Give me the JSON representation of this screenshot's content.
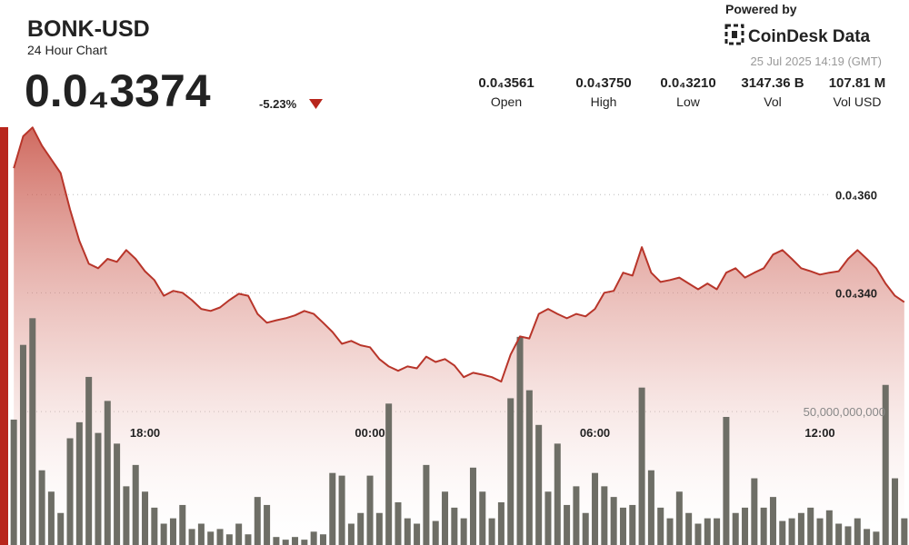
{
  "header": {
    "title": "BONK-USD",
    "subtitle": "24 Hour Chart",
    "price": "0.0₄3374",
    "change": "-5.23%",
    "powered_by": "Powered by",
    "brand": "CoinDesk Data",
    "timestamp": "25 Jul 2025 14:19 (GMT)",
    "stats": [
      {
        "value": "0.0₄3561",
        "label": "Open"
      },
      {
        "value": "0.0₄3750",
        "label": "High"
      },
      {
        "value": "0.0₄3210",
        "label": "Low"
      },
      {
        "value": "3147.36 B",
        "label": "Vol"
      },
      {
        "value": "107.81 M",
        "label": "Vol USD"
      }
    ]
  },
  "chart_data": {
    "type": "line",
    "categories": [
      null,
      null,
      null,
      null,
      null,
      null,
      null,
      null,
      null,
      null,
      null,
      null,
      null,
      null,
      "18:00",
      null,
      null,
      null,
      null,
      null,
      null,
      null,
      null,
      null,
      null,
      null,
      null,
      null,
      null,
      null,
      null,
      null,
      null,
      null,
      null,
      null,
      null,
      null,
      "00:00",
      null,
      null,
      null,
      null,
      null,
      null,
      null,
      null,
      null,
      null,
      null,
      null,
      null,
      null,
      null,
      null,
      null,
      null,
      null,
      null,
      null,
      null,
      null,
      "06:00",
      null,
      null,
      null,
      null,
      null,
      null,
      null,
      null,
      null,
      null,
      null,
      null,
      null,
      null,
      null,
      null,
      null,
      null,
      null,
      null,
      null,
      null,
      null,
      "12:00",
      null,
      null,
      null,
      null,
      null,
      null,
      null,
      null,
      null
    ],
    "series": [
      {
        "color": "#b8352a",
        "values": [
          3.654e-05,
          3.719e-05,
          3.737e-05,
          3.7e-05,
          3.672e-05,
          3.644e-05,
          3.57e-05,
          3.506e-05,
          3.459e-05,
          3.45e-05,
          3.469e-05,
          3.463e-05,
          3.487e-05,
          3.469e-05,
          3.444e-05,
          3.426e-05,
          3.394e-05,
          3.404e-05,
          3.4e-05,
          3.385e-05,
          3.367e-05,
          3.363e-05,
          3.37e-05,
          3.385e-05,
          3.398e-05,
          3.394e-05,
          3.357e-05,
          3.339e-05,
          3.344e-05,
          3.348e-05,
          3.354e-05,
          3.363e-05,
          3.357e-05,
          3.339e-05,
          3.32e-05,
          3.296e-05,
          3.302e-05,
          3.293e-05,
          3.289e-05,
          3.265e-05,
          3.25e-05,
          3.241e-05,
          3.25e-05,
          3.246e-05,
          3.27e-05,
          3.259e-05,
          3.265e-05,
          3.252e-05,
          3.228e-05,
          3.237e-05,
          3.233e-05,
          3.228e-05,
          3.219e-05,
          3.274e-05,
          3.311e-05,
          3.307e-05,
          3.357e-05,
          3.367e-05,
          3.357e-05,
          3.348e-05,
          3.357e-05,
          3.352e-05,
          3.367e-05,
          3.4e-05,
          3.404e-05,
          3.441e-05,
          3.435e-05,
          3.493e-05,
          3.441e-05,
          3.422e-05,
          3.426e-05,
          3.431e-05,
          3.419e-05,
          3.407e-05,
          3.419e-05,
          3.407e-05,
          3.441e-05,
          3.45e-05,
          3.431e-05,
          3.441e-05,
          3.45e-05,
          3.478e-05,
          3.487e-05,
          3.469e-05,
          3.45e-05,
          3.444e-05,
          3.437e-05,
          3.441e-05,
          3.444e-05,
          3.469e-05,
          3.487e-05,
          3.469e-05,
          3.45e-05,
          3.419e-05,
          3.394e-05,
          3.381e-05
        ]
      },
      {
        "type": "bar",
        "axis": "y2",
        "color": "#6e6e66",
        "values": [
          47000000000,
          75000000000,
          85000000000,
          28000000000,
          20000000000,
          12000000000,
          40000000000,
          46000000000,
          63000000000,
          42000000000,
          54000000000,
          38000000000,
          22000000000,
          30000000000,
          20000000000,
          14000000000,
          8000000000,
          10000000000,
          15000000000,
          6000000000,
          8000000000,
          5000000000,
          6000000000,
          4000000000,
          8000000000,
          4000000000,
          18000000000,
          15000000000,
          3000000000,
          2000000000,
          3000000000,
          2000000000,
          5000000000,
          4000000000,
          27000000000,
          26000000000,
          8000000000,
          12000000000,
          26000000000,
          12000000000,
          53000000000,
          16000000000,
          10000000000,
          8000000000,
          30000000000,
          9000000000,
          20000000000,
          14000000000,
          10000000000,
          29000000000,
          20000000000,
          10000000000,
          16000000000,
          55000000000,
          78000000000,
          58000000000,
          45000000000,
          20000000000,
          38000000000,
          15000000000,
          22000000000,
          12000000000,
          27000000000,
          22000000000,
          18000000000,
          14000000000,
          15000000000,
          59000000000,
          28000000000,
          14000000000,
          10000000000,
          20000000000,
          12000000000,
          8000000000,
          10000000000,
          10000000000,
          48000000000,
          12000000000,
          14000000000,
          25000000000,
          14000000000,
          18000000000,
          9000000000,
          10000000000,
          12000000000,
          14000000000,
          10000000000,
          13000000000,
          8000000000,
          7000000000,
          10000000000,
          6000000000,
          5000000000,
          60000000000,
          25000000000,
          10000000000
        ]
      }
    ],
    "ylim": [
      2.886e-05,
      3.756e-05
    ],
    "yticks": [
      {
        "value": 3.4e-05,
        "label": "0.0₄340"
      },
      {
        "value": 3.6e-05,
        "label": "0.0₄360"
      }
    ],
    "y2lim": [
      0,
      160000000000
    ],
    "y2ticks": [
      {
        "value": 50000000000,
        "label": "50,000,000,000"
      }
    ],
    "grid": true
  }
}
